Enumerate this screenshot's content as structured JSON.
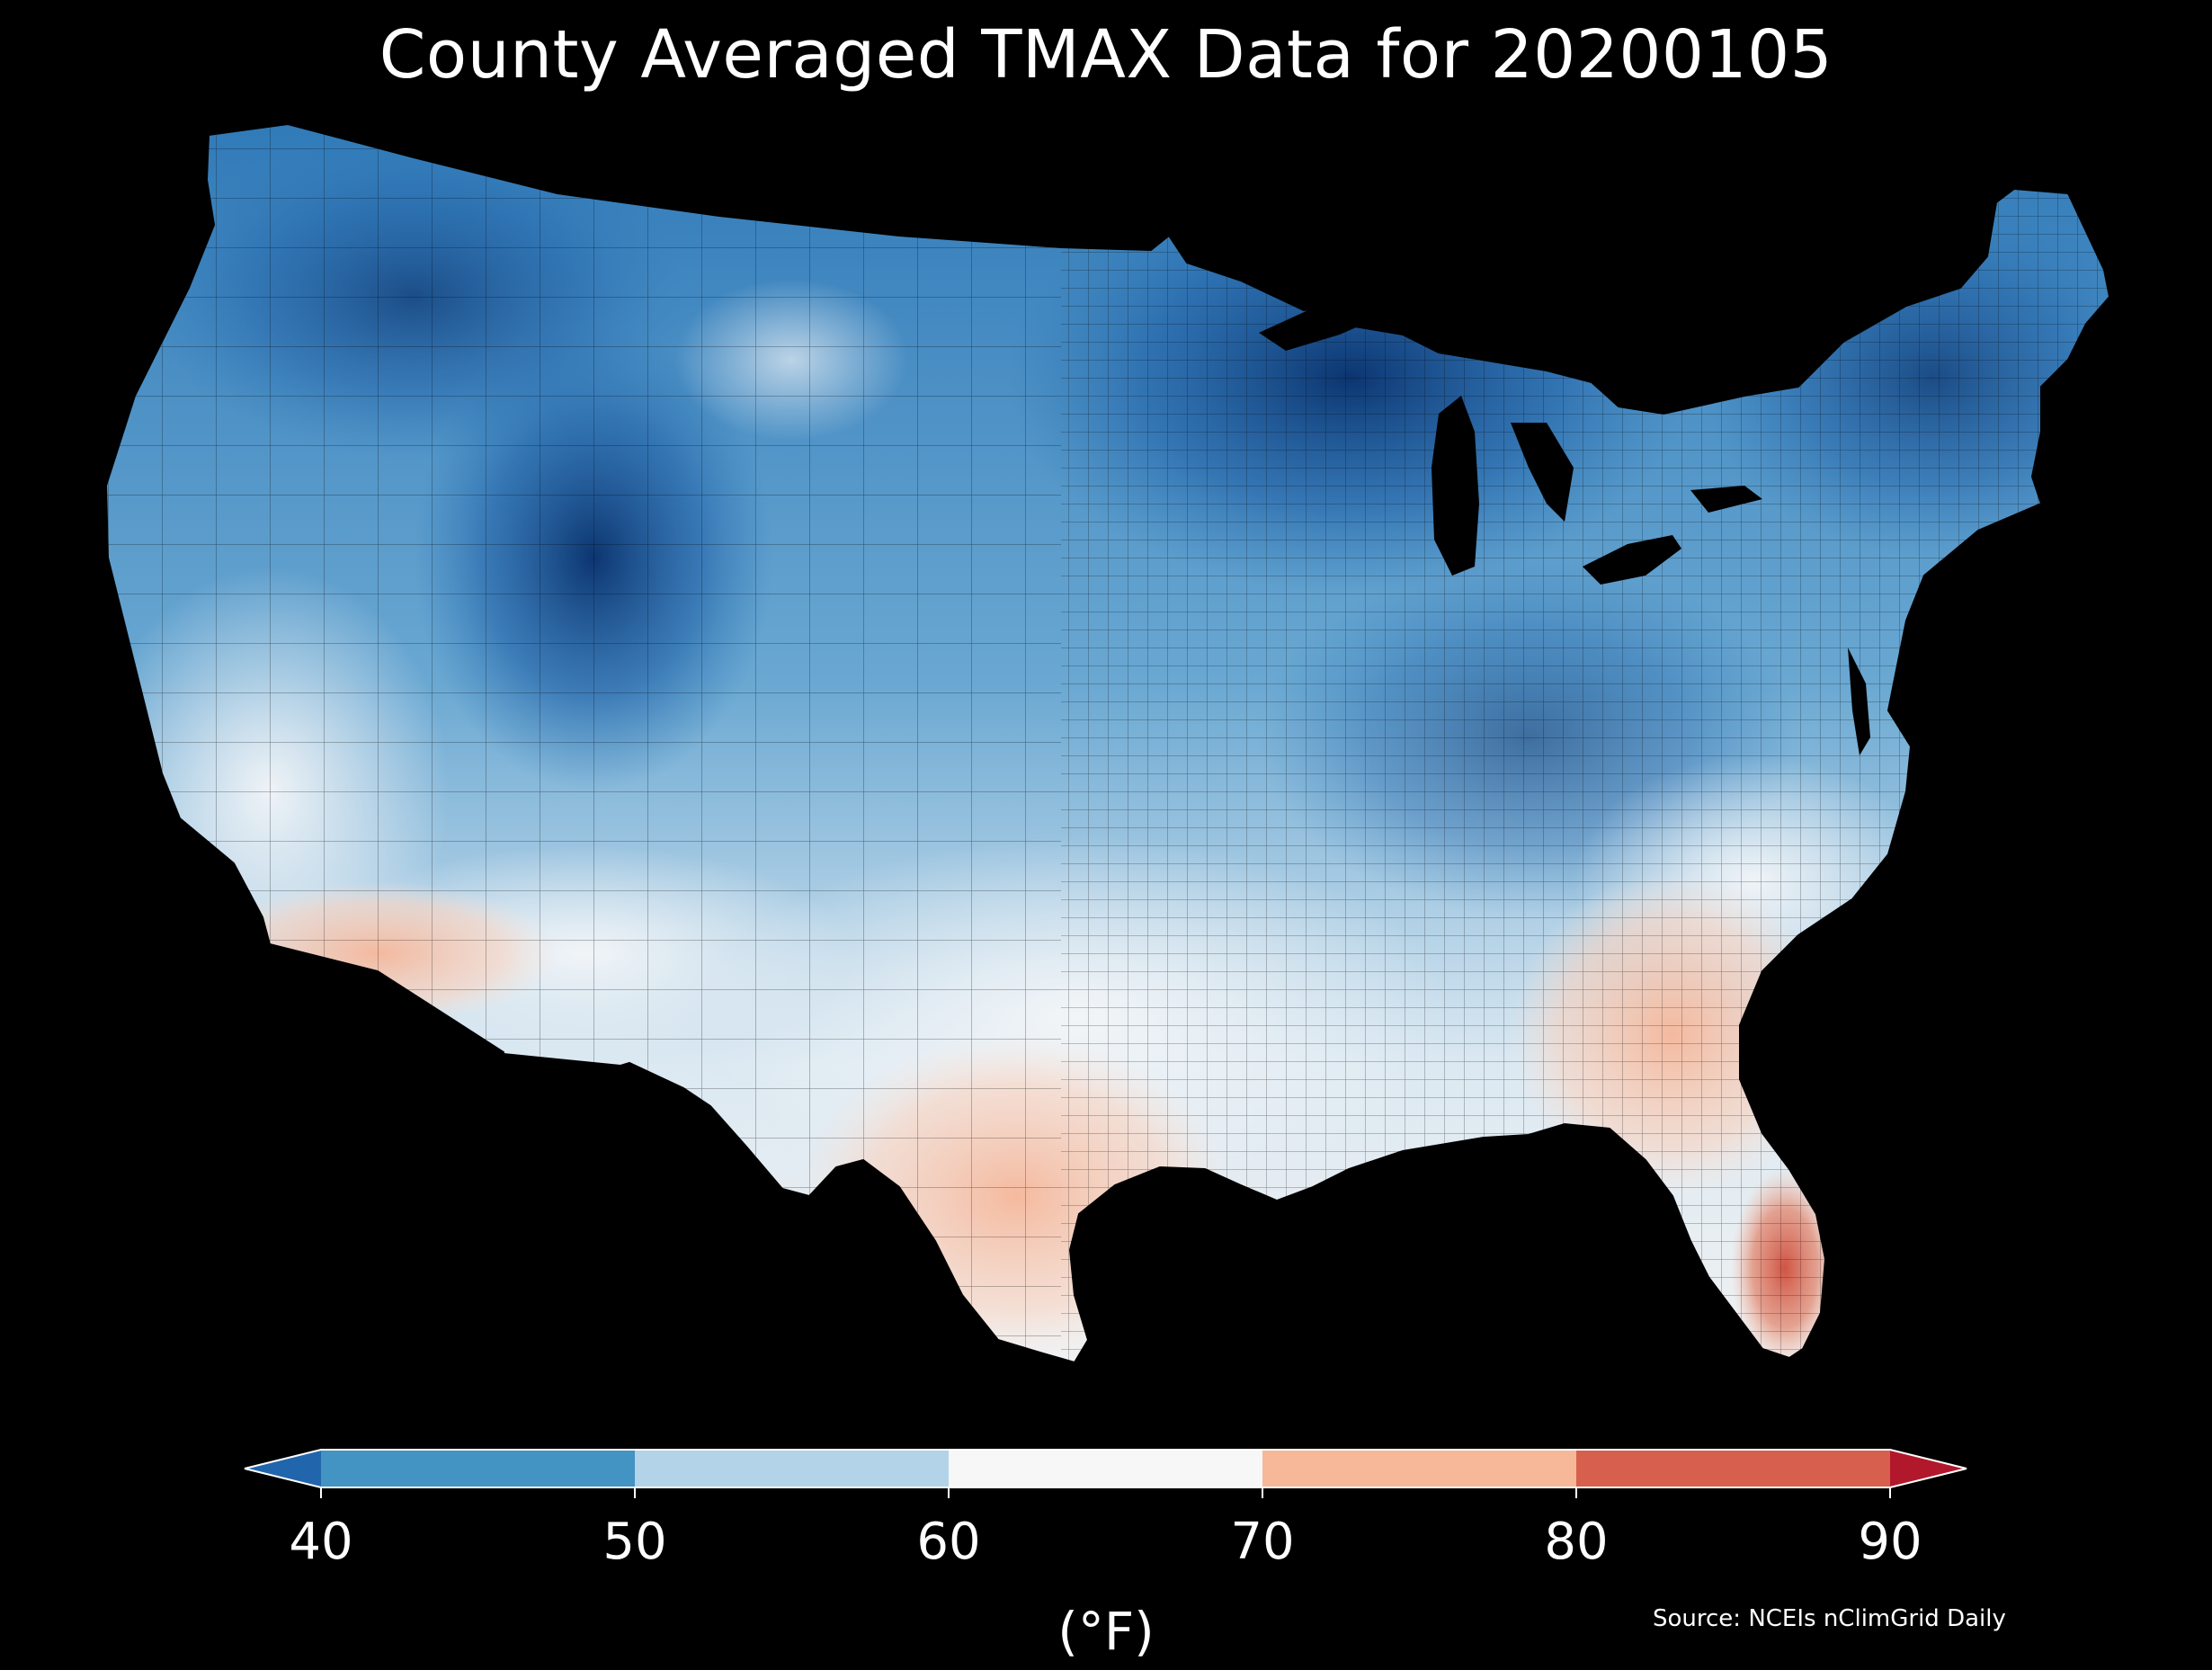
{
  "title": "County Averaged TMAX Data for 20200105",
  "legend": {
    "units": "(°F)",
    "ticks": [
      "40",
      "50",
      "60",
      "70",
      "80",
      "90"
    ],
    "tick_values": [
      40,
      50,
      60,
      70,
      80,
      90
    ],
    "bins": [
      {
        "from": 40,
        "to": 50,
        "color": "#4393c3"
      },
      {
        "from": 50,
        "to": 60,
        "color": "#b3d3e8"
      },
      {
        "from": 60,
        "to": 70,
        "color": "#f7f7f7"
      },
      {
        "from": 70,
        "to": 80,
        "color": "#f7b799"
      },
      {
        "from": 80,
        "to": 90,
        "color": "#d6604d"
      }
    ],
    "extend_low_color": "#2166ac",
    "extend_high_color": "#b2182b"
  },
  "source": "Source: NCEIs nClimGrid Daily",
  "colors": {
    "background": "#000000",
    "text": "#ffffff",
    "coldest": "#08306b",
    "cold": "#2166ac",
    "cool": "#4393c3",
    "mild": "#92c5de",
    "neutral": "#f0f0f0",
    "warm": "#fbd0b9",
    "hot": "#d6604d"
  }
}
